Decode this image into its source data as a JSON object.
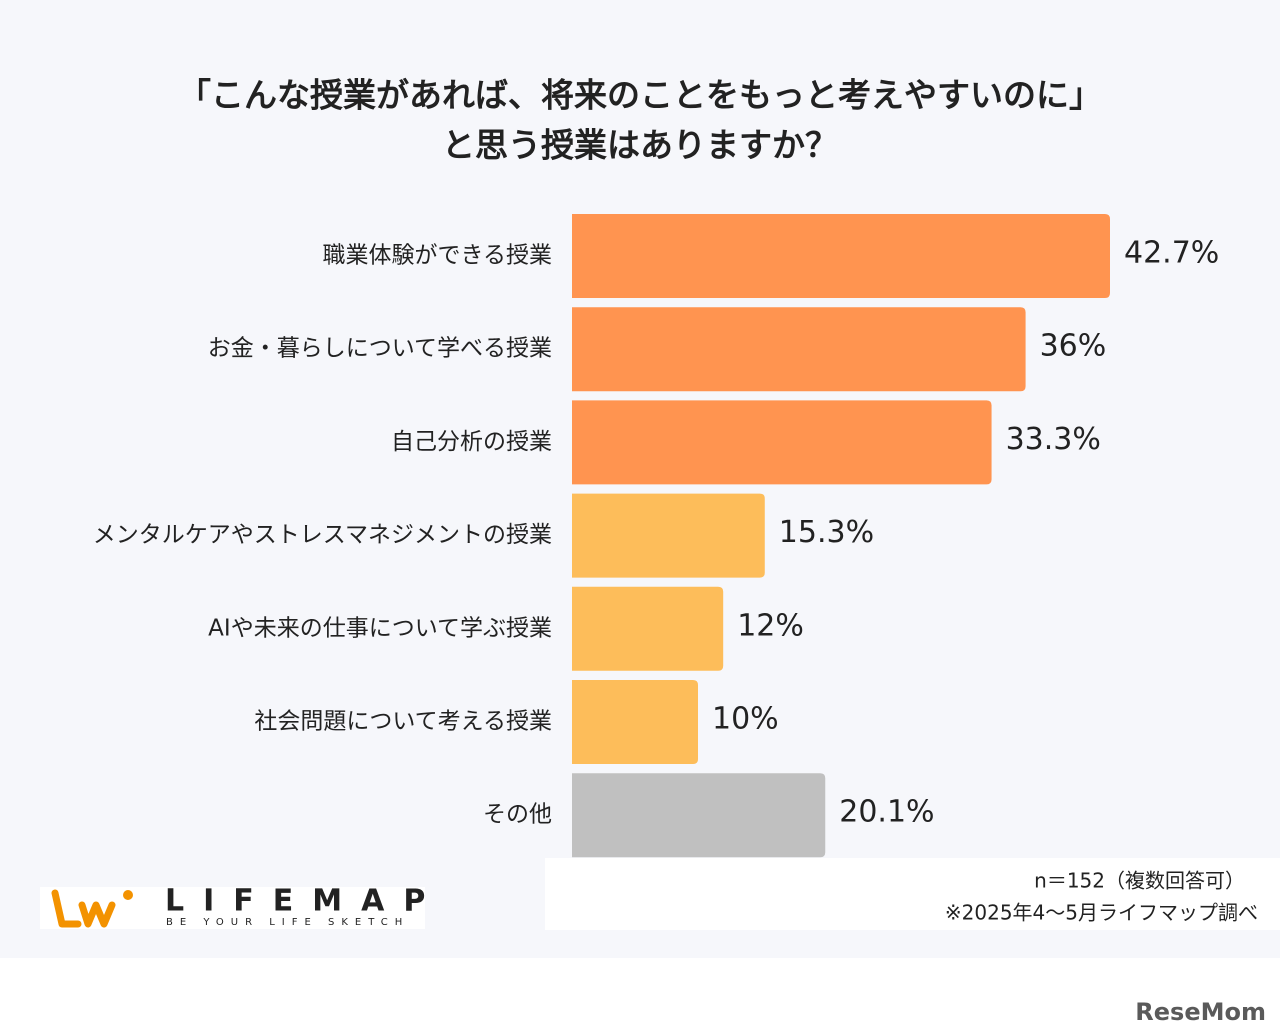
{
  "chart_data": {
    "type": "hbar",
    "title": [
      "「こんな授業があれば、将来のことをもっと考えやすいのに」",
      "と思う授業はありますか？"
    ],
    "categories": [
      "職業体験ができる授業",
      "お金・暮らしについて学べる授業",
      "自己分析の授業",
      "メンタルケアやストレスマネジメントの授業",
      "AIや未来の仕事について学ぶ授業",
      "社会問題について考える授業",
      "その他"
    ],
    "values": [
      42.7,
      36,
      33.3,
      15.3,
      12,
      10,
      20.1
    ],
    "value_labels": [
      "42.7%",
      "36%",
      "33.3%",
      "15.3%",
      "12%",
      "10%",
      "20.1%"
    ],
    "colors": [
      "#ff9450",
      "#ff9450",
      "#ff9450",
      "#fdbd5a",
      "#fdbd5a",
      "#fdbd5a",
      "#c0c0c0"
    ],
    "note": "n＝152（複数回答可）",
    "source": "※2025年4〜5月ライフマップ調べ"
  },
  "branding": {
    "logo": "LIFEMAP",
    "tagline": "BE YOUR LIFE SKETCH",
    "watermark": "ReseMom"
  }
}
